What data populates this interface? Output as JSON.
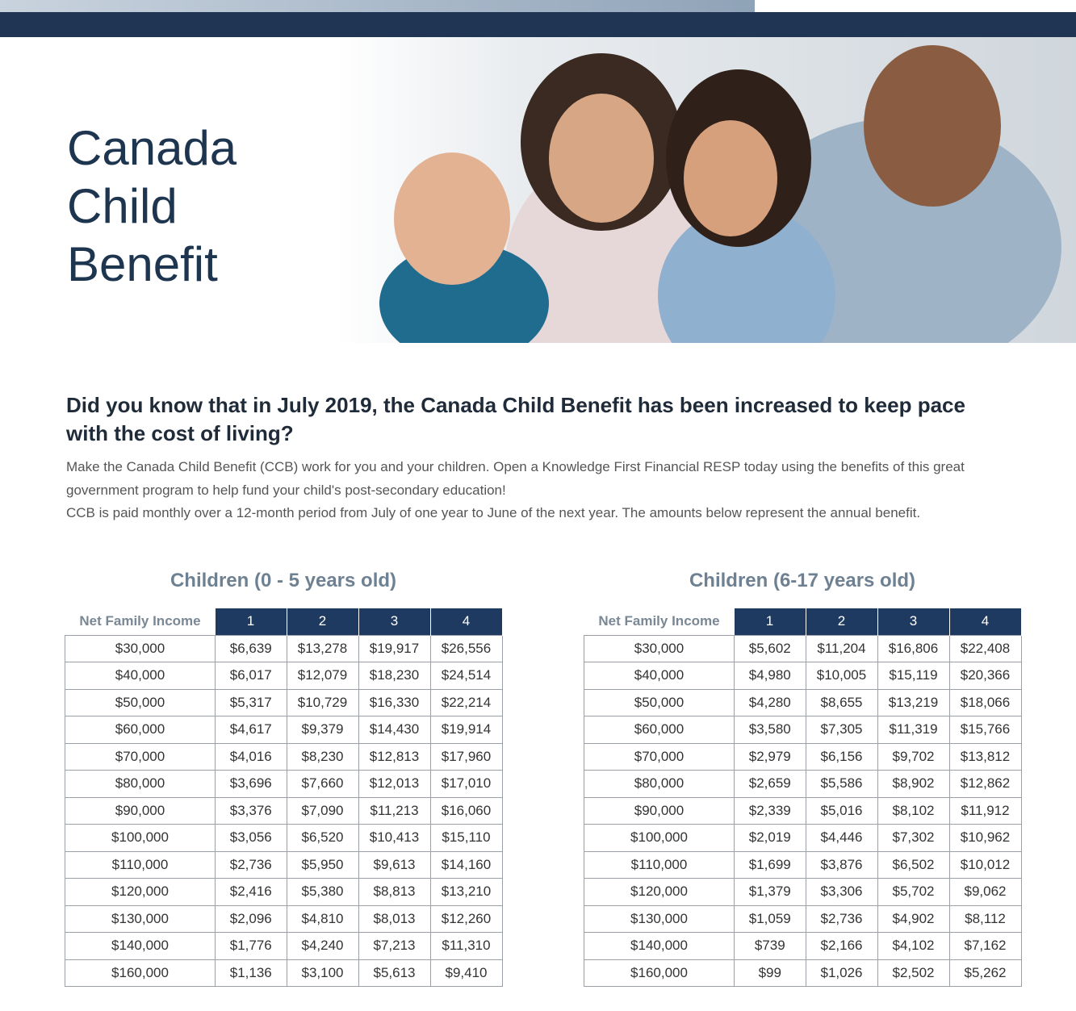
{
  "header": {
    "title": "Canada Child Benefit"
  },
  "intro": {
    "heading": "Did you know that in July 2019, the Canada Child Benefit has been increased to keep pace with the cost of living?",
    "paragraphs": [
      "Make the Canada Child Benefit (CCB) work for you and your children. Open a Knowledge First Financial RESP today using the benefits of this great government program to help fund your child's post-secondary education!",
      "CCB is paid monthly over a 12-month period from July of one year to June of the next year. The amounts below represent the annual benefit."
    ]
  },
  "tables": [
    {
      "title": "Children (0 - 5 years old)",
      "header": [
        "Net Family Income",
        "1",
        "2",
        "3",
        "4"
      ],
      "rows": [
        [
          "$30,000",
          "$6,639",
          "$13,278",
          "$19,917",
          "$26,556"
        ],
        [
          "$40,000",
          "$6,017",
          "$12,079",
          "$18,230",
          "$24,514"
        ],
        [
          "$50,000",
          "$5,317",
          "$10,729",
          "$16,330",
          "$22,214"
        ],
        [
          "$60,000",
          "$4,617",
          "$9,379",
          "$14,430",
          "$19,914"
        ],
        [
          "$70,000",
          "$4,016",
          "$8,230",
          "$12,813",
          "$17,960"
        ],
        [
          "$80,000",
          "$3,696",
          "$7,660",
          "$12,013",
          "$17,010"
        ],
        [
          "$90,000",
          "$3,376",
          "$7,090",
          "$11,213",
          "$16,060"
        ],
        [
          "$100,000",
          "$3,056",
          "$6,520",
          "$10,413",
          "$15,110"
        ],
        [
          "$110,000",
          "$2,736",
          "$5,950",
          "$9,613",
          "$14,160"
        ],
        [
          "$120,000",
          "$2,416",
          "$5,380",
          "$8,813",
          "$13,210"
        ],
        [
          "$130,000",
          "$2,096",
          "$4,810",
          "$8,013",
          "$12,260"
        ],
        [
          "$140,000",
          "$1,776",
          "$4,240",
          "$7,213",
          "$11,310"
        ],
        [
          "$160,000",
          "$1,136",
          "$3,100",
          "$5,613",
          "$9,410"
        ]
      ]
    },
    {
      "title": "Children (6-17 years old)",
      "header": [
        "Net Family Income",
        "1",
        "2",
        "3",
        "4"
      ],
      "rows": [
        [
          "$30,000",
          "$5,602",
          "$11,204",
          "$16,806",
          "$22,408"
        ],
        [
          "$40,000",
          "$4,980",
          "$10,005",
          "$15,119",
          "$20,366"
        ],
        [
          "$50,000",
          "$4,280",
          "$8,655",
          "$13,219",
          "$18,066"
        ],
        [
          "$60,000",
          "$3,580",
          "$7,305",
          "$11,319",
          "$15,766"
        ],
        [
          "$70,000",
          "$2,979",
          "$6,156",
          "$9,702",
          "$13,812"
        ],
        [
          "$80,000",
          "$2,659",
          "$5,586",
          "$8,902",
          "$12,862"
        ],
        [
          "$90,000",
          "$2,339",
          "$5,016",
          "$8,102",
          "$11,912"
        ],
        [
          "$100,000",
          "$2,019",
          "$4,446",
          "$7,302",
          "$10,962"
        ],
        [
          "$110,000",
          "$1,699",
          "$3,876",
          "$6,502",
          "$10,012"
        ],
        [
          "$120,000",
          "$1,379",
          "$3,306",
          "$5,702",
          "$9,062"
        ],
        [
          "$130,000",
          "$1,059",
          "$2,736",
          "$4,902",
          "$8,112"
        ],
        [
          "$140,000",
          "$739",
          "$2,166",
          "$4,102",
          "$7,162"
        ],
        [
          "$160,000",
          "$99",
          "$1,026",
          "$2,502",
          "$5,262"
        ]
      ]
    }
  ]
}
